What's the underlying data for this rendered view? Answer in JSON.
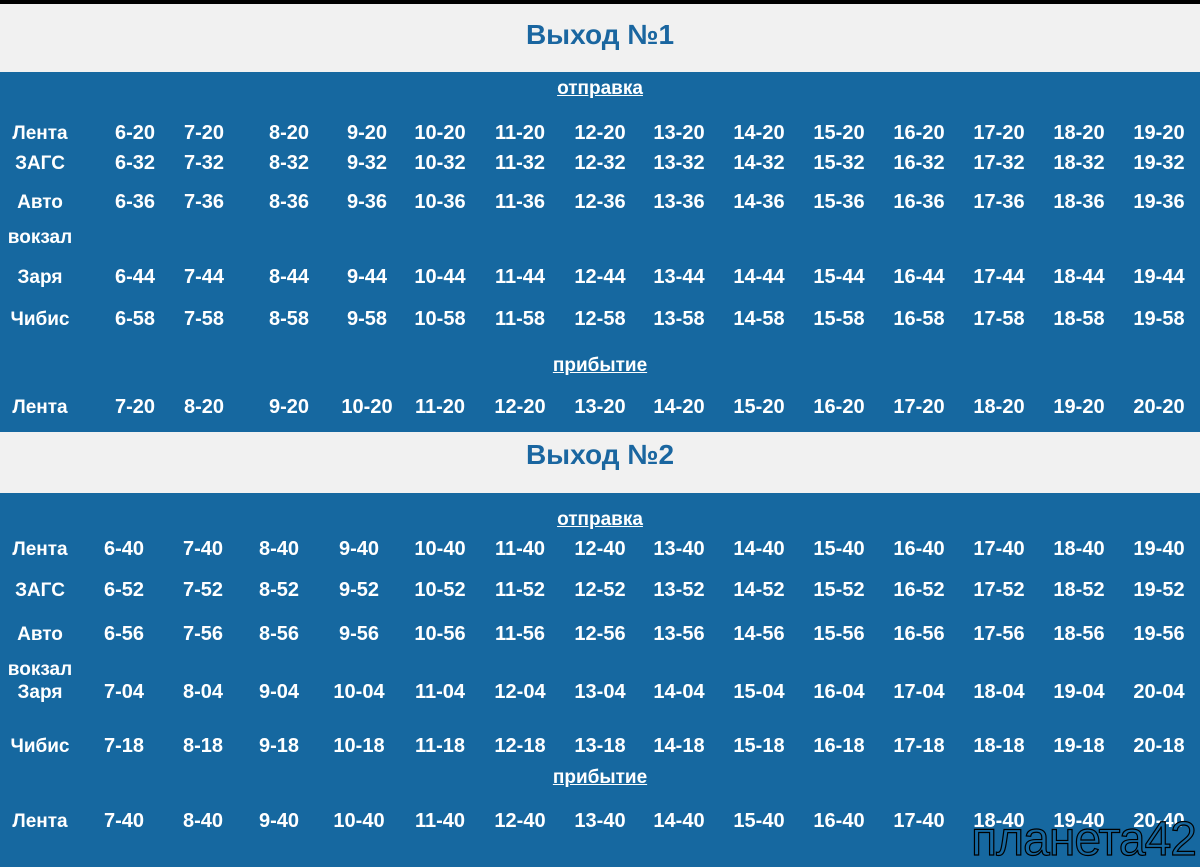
{
  "sections": [
    {
      "title": "Выход №1",
      "departure_label": "отправка",
      "rows": [
        {
          "stop": "Лента",
          "times": [
            "6-20",
            "7-20",
            "8-20",
            "9-20",
            "10-20",
            "11-20",
            "12-20",
            "13-20",
            "14-20",
            "15-20",
            "16-20",
            "17-20",
            "18-20",
            "19-20"
          ]
        },
        {
          "stop": "ЗАГС",
          "times": [
            "6-32",
            "7-32",
            "8-32",
            "9-32",
            "10-32",
            "11-32",
            "12-32",
            "13-32",
            "14-32",
            "15-32",
            "16-32",
            "17-32",
            "18-32",
            "19-32"
          ]
        },
        {
          "stop": "Авто вокзал",
          "times": [
            "6-36",
            "7-36",
            "8-36",
            "9-36",
            "10-36",
            "11-36",
            "12-36",
            "13-36",
            "14-36",
            "15-36",
            "16-36",
            "17-36",
            "18-36",
            "19-36"
          ]
        },
        {
          "stop": "Заря",
          "times": [
            "6-44",
            "7-44",
            "8-44",
            "9-44",
            "10-44",
            "11-44",
            "12-44",
            "13-44",
            "14-44",
            "15-44",
            "16-44",
            "17-44",
            "18-44",
            "19-44"
          ]
        },
        {
          "stop": "Чибис",
          "times": [
            "6-58",
            "7-58",
            "8-58",
            "9-58",
            "10-58",
            "11-58",
            "12-58",
            "13-58",
            "14-58",
            "15-58",
            "16-58",
            "17-58",
            "18-58",
            "19-58"
          ]
        }
      ],
      "arrival_label": "прибытие",
      "arrival": {
        "stop": "Лента",
        "times": [
          "7-20",
          "8-20",
          "9-20",
          "10-20",
          "11-20",
          "12-20",
          "13-20",
          "14-20",
          "15-20",
          "16-20",
          "17-20",
          "18-20",
          "19-20",
          "20-20"
        ]
      }
    },
    {
      "title": "Выход №2",
      "departure_label": "отправка",
      "rows": [
        {
          "stop": "Лента",
          "times": [
            "6-40",
            "7-40",
            "8-40",
            "9-40",
            "10-40",
            "11-40",
            "12-40",
            "13-40",
            "14-40",
            "15-40",
            "16-40",
            "17-40",
            "18-40",
            "19-40"
          ]
        },
        {
          "stop": "ЗАГС",
          "times": [
            "6-52",
            "7-52",
            "8-52",
            "9-52",
            "10-52",
            "11-52",
            "12-52",
            "13-52",
            "14-52",
            "15-52",
            "16-52",
            "17-52",
            "18-52",
            "19-52"
          ]
        },
        {
          "stop": "Авто вокзал",
          "times": [
            "6-56",
            "7-56",
            "8-56",
            "9-56",
            "10-56",
            "11-56",
            "12-56",
            "13-56",
            "14-56",
            "15-56",
            "16-56",
            "17-56",
            "18-56",
            "19-56"
          ]
        },
        {
          "stop": "Заря",
          "times": [
            "7-04",
            "8-04",
            "9-04",
            "10-04",
            "11-04",
            "12-04",
            "13-04",
            "14-04",
            "15-04",
            "16-04",
            "17-04",
            "18-04",
            "19-04",
            "20-04"
          ]
        },
        {
          "stop": "Чибис",
          "times": [
            "7-18",
            "8-18",
            "9-18",
            "10-18",
            "11-18",
            "12-18",
            "13-18",
            "14-18",
            "15-18",
            "16-18",
            "17-18",
            "18-18",
            "19-18",
            "20-18"
          ]
        }
      ],
      "arrival_label": "прибытие",
      "arrival": {
        "stop": "Лента",
        "times": [
          "7-40",
          "8-40",
          "9-40",
          "10-40",
          "11-40",
          "12-40",
          "13-40",
          "14-40",
          "15-40",
          "16-40",
          "17-40",
          "18-40",
          "19-40",
          "20-40"
        ]
      }
    }
  ],
  "watermark": "планета42"
}
